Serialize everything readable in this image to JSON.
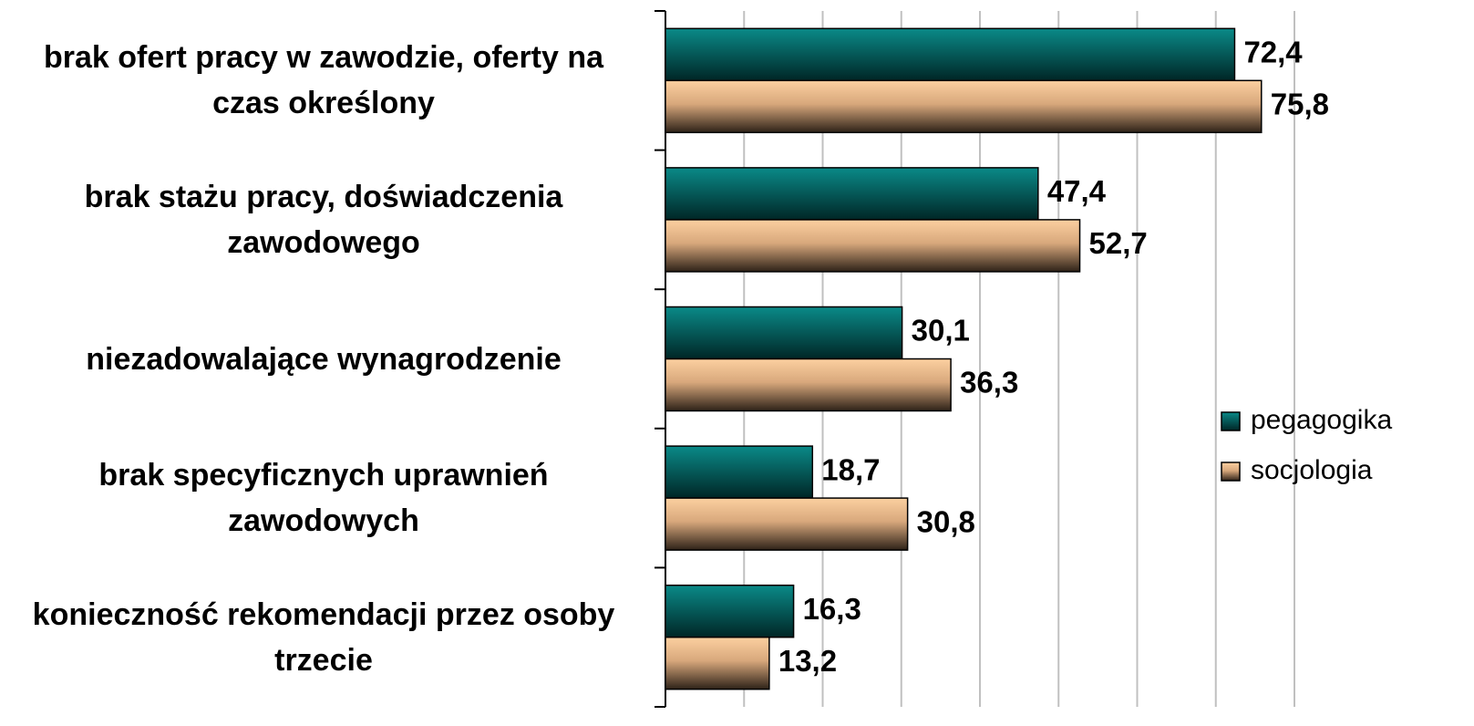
{
  "chart_data": {
    "type": "barh",
    "categories": [
      "brak ofert pracy w zawodzie, oferty na\nczas określony",
      "brak stażu pracy, doświadczenia\nzawodowego",
      "niezadowalające wynagrodzenie",
      "brak specyficznych uprawnień\nzawodowych",
      "konieczność rekomendacji przez osoby\ntrzecie"
    ],
    "series": [
      {
        "name": "pegagogika",
        "color": "#0a8a88",
        "values": [
          72.4,
          47.4,
          30.1,
          18.7,
          16.3
        ],
        "value_labels": [
          "72,4",
          "47,4",
          "30,1",
          "18,7",
          "16,3"
        ]
      },
      {
        "name": "socjologia",
        "color": "#f8c898",
        "values": [
          75.8,
          52.7,
          36.3,
          30.8,
          13.2
        ],
        "value_labels": [
          "75,8",
          "52,7",
          "36,3",
          "30,8",
          "13,2"
        ]
      }
    ],
    "xlim": [
      0,
      80
    ],
    "xticks": [
      0,
      10,
      20,
      30,
      40,
      50,
      60,
      70,
      80
    ],
    "grid": true,
    "legend": "right"
  }
}
